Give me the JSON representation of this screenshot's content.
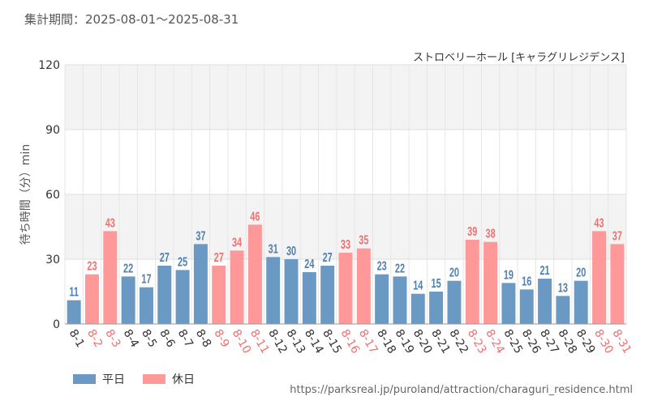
{
  "header": {
    "period": "集計期間：2025-08-01～2025-08-31",
    "attraction": "ストロベリーホール [キャラグリレジデンス]"
  },
  "colors": {
    "weekday": "#6a9ac4",
    "holiday": "#ff9999",
    "weekday_label": "#4f7fae",
    "holiday_label": "#f07070"
  },
  "legend": {
    "weekday": "平日",
    "holiday": "休日"
  },
  "source": "https://parksreal.jp/puroland/attraction/charaguri_residence.html",
  "chart_data": {
    "type": "bar",
    "ylabel": "待ち時間（分）min",
    "ylim": [
      0,
      120
    ],
    "yticks": [
      0,
      30,
      60,
      90,
      120
    ],
    "grid": true,
    "legend_position": "bottom-left",
    "categories": [
      "8-1",
      "8-2",
      "8-3",
      "8-4",
      "8-5",
      "8-6",
      "8-7",
      "8-8",
      "8-9",
      "8-10",
      "8-11",
      "8-12",
      "8-13",
      "8-14",
      "8-15",
      "8-16",
      "8-17",
      "8-18",
      "8-19",
      "8-20",
      "8-21",
      "8-22",
      "8-23",
      "8-24",
      "8-25",
      "8-26",
      "8-27",
      "8-28",
      "8-29",
      "8-30",
      "8-31"
    ],
    "values": [
      11,
      23,
      43,
      22,
      17,
      27,
      25,
      37,
      27,
      34,
      46,
      31,
      30,
      24,
      27,
      33,
      35,
      23,
      22,
      14,
      15,
      20,
      39,
      38,
      19,
      16,
      21,
      13,
      20,
      43,
      37
    ],
    "day_type": [
      "weekday",
      "holiday",
      "holiday",
      "weekday",
      "weekday",
      "weekday",
      "weekday",
      "weekday",
      "holiday",
      "holiday",
      "holiday",
      "weekday",
      "weekday",
      "weekday",
      "weekday",
      "holiday",
      "holiday",
      "weekday",
      "weekday",
      "weekday",
      "weekday",
      "weekday",
      "holiday",
      "holiday",
      "weekday",
      "weekday",
      "weekday",
      "weekday",
      "weekday",
      "holiday",
      "holiday"
    ],
    "series": [
      {
        "name": "平日",
        "key": "weekday"
      },
      {
        "name": "休日",
        "key": "holiday"
      }
    ]
  }
}
